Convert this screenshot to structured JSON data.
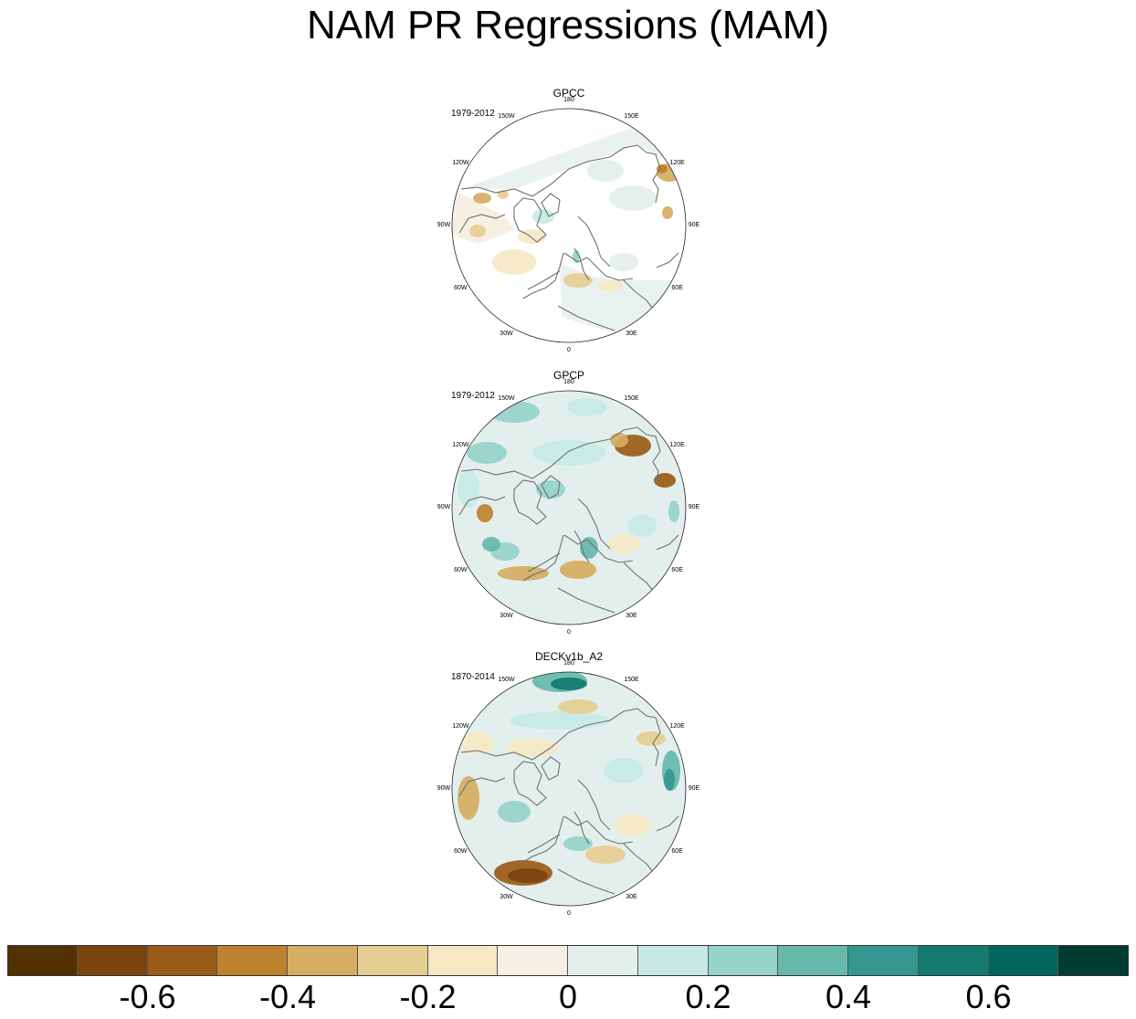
{
  "figure": {
    "title": "NAM PR Regressions (MAM)"
  },
  "panels": [
    {
      "name": "GPCC",
      "period": "1979-2012",
      "pattern": "gpcc"
    },
    {
      "name": "GPCP",
      "period": "1979-2012",
      "pattern": "gpcp"
    },
    {
      "name": "DECKv1b_A2",
      "period": "1870-2014",
      "pattern": "deck"
    }
  ],
  "longitude_labels": [
    "180",
    "150E",
    "120E",
    "90E",
    "60E",
    "30E",
    "0",
    "30W",
    "60W",
    "90W",
    "120W",
    "150W"
  ],
  "colorbar": {
    "colors": [
      "#543005",
      "#7b440d",
      "#9b5b18",
      "#bf812d",
      "#d5ac62",
      "#e6cd93",
      "#f6e8c3",
      "#f5f0e3",
      "#e3efed",
      "#c7eae5",
      "#96d3c9",
      "#66b8ab",
      "#35978f",
      "#137a70",
      "#01665e",
      "#003c30"
    ],
    "labels": [
      "-0.6",
      "-0.4",
      "-0.2",
      "0",
      "0.2",
      "0.4",
      "0.6"
    ]
  },
  "colors": {
    "coastline": "#707070",
    "outline": "#222222"
  }
}
